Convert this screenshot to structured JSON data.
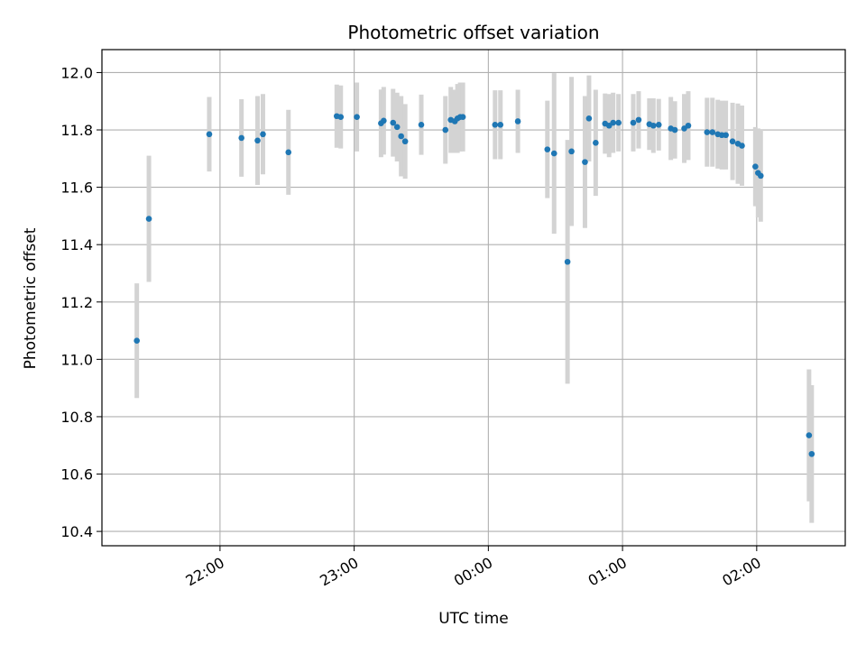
{
  "chart_data": {
    "type": "scatter",
    "title": "Photometric offset variation",
    "xlabel": "UTC time",
    "ylabel": "Photometric offset",
    "x_unit": "hours (UTC, relative to 00:00)",
    "xlim": [
      -2.88,
      2.66
    ],
    "ylim": [
      10.35,
      12.08
    ],
    "grid": true,
    "legend": "none",
    "colors": {
      "point": "#1f77b4",
      "errorbar": "#d3d3d3",
      "grid": "#b0b0b0"
    },
    "xticks": [
      {
        "value": -2.0,
        "label": "22:00"
      },
      {
        "value": -1.0,
        "label": "23:00"
      },
      {
        "value": 0.0,
        "label": "00:00"
      },
      {
        "value": 1.0,
        "label": "01:00"
      },
      {
        "value": 2.0,
        "label": "02:00"
      }
    ],
    "yticks": [
      {
        "value": 10.4,
        "label": "10.4"
      },
      {
        "value": 10.6,
        "label": "10.6"
      },
      {
        "value": 10.8,
        "label": "10.8"
      },
      {
        "value": 11.0,
        "label": "11.0"
      },
      {
        "value": 11.2,
        "label": "11.2"
      },
      {
        "value": 11.4,
        "label": "11.4"
      },
      {
        "value": 11.6,
        "label": "11.6"
      },
      {
        "value": 11.8,
        "label": "11.8"
      },
      {
        "value": 12.0,
        "label": "12.0"
      }
    ],
    "points": [
      {
        "x": -2.62,
        "y": 11.065,
        "err": 0.2
      },
      {
        "x": -2.53,
        "y": 11.49,
        "err": 0.22
      },
      {
        "x": -2.08,
        "y": 11.785,
        "err": 0.13
      },
      {
        "x": -1.84,
        "y": 11.772,
        "err": 0.135
      },
      {
        "x": -1.72,
        "y": 11.763,
        "err": 0.155
      },
      {
        "x": -1.68,
        "y": 11.785,
        "err": 0.14
      },
      {
        "x": -1.49,
        "y": 11.722,
        "err": 0.148
      },
      {
        "x": -1.13,
        "y": 11.848,
        "err": 0.11
      },
      {
        "x": -1.1,
        "y": 11.845,
        "err": 0.11
      },
      {
        "x": -0.98,
        "y": 11.845,
        "err": 0.12
      },
      {
        "x": -0.8,
        "y": 11.823,
        "err": 0.118
      },
      {
        "x": -0.78,
        "y": 11.832,
        "err": 0.118
      },
      {
        "x": -0.71,
        "y": 11.825,
        "err": 0.118
      },
      {
        "x": -0.68,
        "y": 11.81,
        "err": 0.12
      },
      {
        "x": -0.65,
        "y": 11.778,
        "err": 0.14
      },
      {
        "x": -0.62,
        "y": 11.76,
        "err": 0.13
      },
      {
        "x": -0.5,
        "y": 11.818,
        "err": 0.105
      },
      {
        "x": -0.32,
        "y": 11.8,
        "err": 0.118
      },
      {
        "x": -0.28,
        "y": 11.835,
        "err": 0.115
      },
      {
        "x": -0.25,
        "y": 11.83,
        "err": 0.11
      },
      {
        "x": -0.23,
        "y": 11.84,
        "err": 0.12
      },
      {
        "x": -0.21,
        "y": 11.845,
        "err": 0.12
      },
      {
        "x": -0.19,
        "y": 11.845,
        "err": 0.12
      },
      {
        "x": 0.05,
        "y": 11.818,
        "err": 0.12
      },
      {
        "x": 0.09,
        "y": 11.818,
        "err": 0.12
      },
      {
        "x": 0.22,
        "y": 11.83,
        "err": 0.11
      },
      {
        "x": 0.44,
        "y": 11.732,
        "err": 0.17
      },
      {
        "x": 0.49,
        "y": 11.718,
        "err": 0.28
      },
      {
        "x": 0.59,
        "y": 11.34,
        "err": 0.425
      },
      {
        "x": 0.62,
        "y": 11.725,
        "err": 0.26
      },
      {
        "x": 0.72,
        "y": 11.688,
        "err": 0.23
      },
      {
        "x": 0.75,
        "y": 11.84,
        "err": 0.15
      },
      {
        "x": 0.8,
        "y": 11.755,
        "err": 0.185
      },
      {
        "x": 0.87,
        "y": 11.822,
        "err": 0.105
      },
      {
        "x": 0.9,
        "y": 11.815,
        "err": 0.11
      },
      {
        "x": 0.93,
        "y": 11.825,
        "err": 0.105
      },
      {
        "x": 0.97,
        "y": 11.825,
        "err": 0.1
      },
      {
        "x": 1.08,
        "y": 11.825,
        "err": 0.1
      },
      {
        "x": 1.12,
        "y": 11.835,
        "err": 0.1
      },
      {
        "x": 1.2,
        "y": 11.82,
        "err": 0.09
      },
      {
        "x": 1.23,
        "y": 11.815,
        "err": 0.095
      },
      {
        "x": 1.27,
        "y": 11.818,
        "err": 0.09
      },
      {
        "x": 1.36,
        "y": 11.805,
        "err": 0.11
      },
      {
        "x": 1.39,
        "y": 11.8,
        "err": 0.1
      },
      {
        "x": 1.46,
        "y": 11.805,
        "err": 0.12
      },
      {
        "x": 1.49,
        "y": 11.815,
        "err": 0.12
      },
      {
        "x": 1.63,
        "y": 11.792,
        "err": 0.12
      },
      {
        "x": 1.67,
        "y": 11.792,
        "err": 0.12
      },
      {
        "x": 1.71,
        "y": 11.785,
        "err": 0.12
      },
      {
        "x": 1.74,
        "y": 11.782,
        "err": 0.12
      },
      {
        "x": 1.77,
        "y": 11.782,
        "err": 0.12
      },
      {
        "x": 1.82,
        "y": 11.76,
        "err": 0.135
      },
      {
        "x": 1.86,
        "y": 11.752,
        "err": 0.14
      },
      {
        "x": 1.89,
        "y": 11.745,
        "err": 0.14
      },
      {
        "x": 1.99,
        "y": 11.672,
        "err": 0.138
      },
      {
        "x": 2.01,
        "y": 11.65,
        "err": 0.155
      },
      {
        "x": 2.03,
        "y": 11.64,
        "err": 0.16
      },
      {
        "x": 2.39,
        "y": 10.735,
        "err": 0.23
      },
      {
        "x": 2.41,
        "y": 10.67,
        "err": 0.24
      }
    ]
  }
}
